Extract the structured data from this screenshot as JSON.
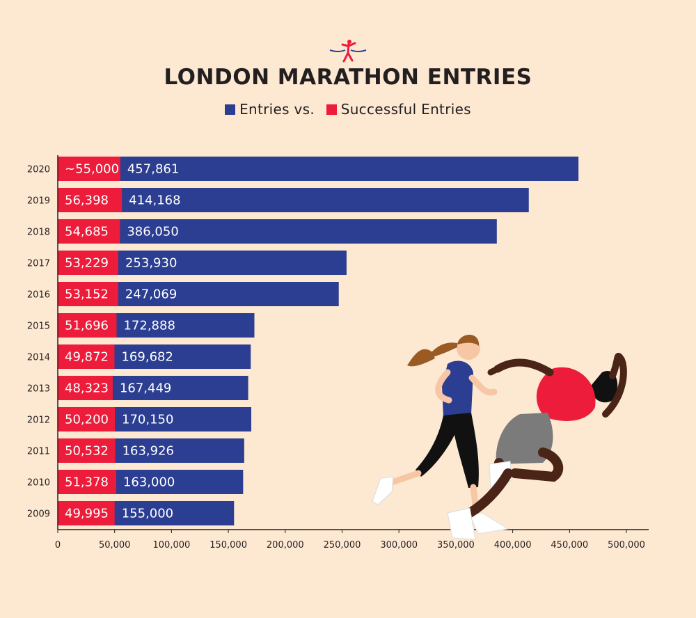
{
  "title": "LONDON MARATHON ENTRIES",
  "legend": {
    "entries_label": "Entries vs.",
    "successful_label": "Successful Entries"
  },
  "colors": {
    "background": "#fde8d2",
    "entries": "#2c3e91",
    "successful": "#ec1c3a",
    "text": "#231f20"
  },
  "chart_data": {
    "type": "bar",
    "orientation": "horizontal",
    "stacked": false,
    "title": "LONDON MARATHON ENTRIES",
    "categories": [
      "2020",
      "2019",
      "2018",
      "2017",
      "2016",
      "2015",
      "2014",
      "2013",
      "2012",
      "2011",
      "2010",
      "2009"
    ],
    "series": [
      {
        "name": "Entries",
        "color": "#2c3e91",
        "values": [
          457861,
          414168,
          386050,
          253930,
          247069,
          172888,
          169682,
          167449,
          170150,
          163926,
          163000,
          155000
        ],
        "labels": [
          "457,861",
          "414,168",
          "386,050",
          "253,930",
          "247,069",
          "172,888",
          "169,682",
          "167,449",
          "170,150",
          "163,926",
          "163,000",
          "155,000"
        ]
      },
      {
        "name": "Successful Entries",
        "color": "#ec1c3a",
        "values": [
          55000,
          56398,
          54685,
          53229,
          53152,
          51696,
          49872,
          48323,
          50200,
          50532,
          51378,
          49995
        ],
        "labels": [
          "~55,000",
          "56,398",
          "54,685",
          "53,229",
          "53,152",
          "51,696",
          "49,872",
          "48,323",
          "50,200",
          "50,532",
          "51,378",
          "49,995"
        ]
      }
    ],
    "xlim": [
      0,
      500000
    ],
    "xticks": [
      0,
      50000,
      100000,
      150000,
      200000,
      250000,
      300000,
      350000,
      400000,
      450000,
      500000
    ],
    "xtick_labels": [
      "0",
      "50,000",
      "100,000",
      "150,000",
      "200,000",
      "250,000",
      "300,000",
      "350,000",
      "400,000",
      "450,000",
      "500,000"
    ],
    "grid": false,
    "legend_position": "top-center"
  }
}
